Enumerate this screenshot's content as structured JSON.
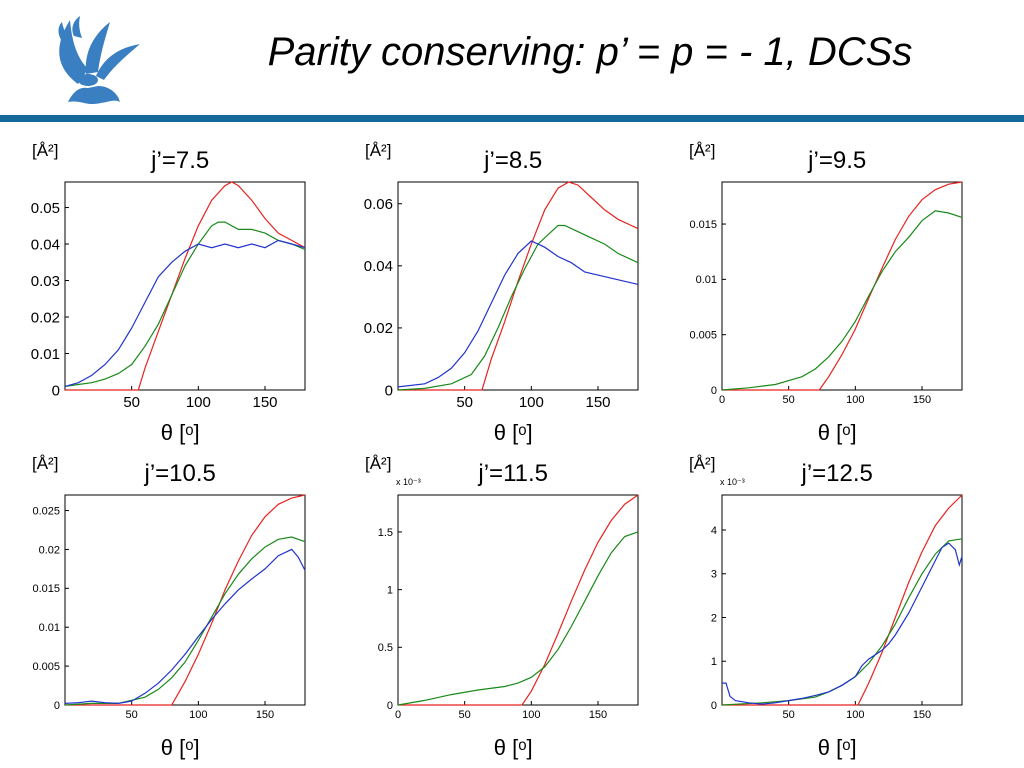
{
  "slide": {
    "title": "Parity conserving: p’ = p = - 1, DCSs"
  },
  "colors": {
    "accent": "#15699b",
    "red": "#e8231f",
    "green": "#1a8a1a",
    "blue": "#2233cc"
  },
  "chart_data": [
    {
      "type": "line",
      "title": "j’=7.5",
      "ylabel": "[Å2]",
      "xlabel": "θ [o]",
      "xlim": [
        0,
        180
      ],
      "ylim": [
        0,
        0.057
      ],
      "xticks": [
        "50",
        "100",
        "150"
      ],
      "xtick_values": [
        50,
        100,
        150
      ],
      "yticks": [
        "0",
        "0.01",
        "0.02",
        "0.03",
        "0.04",
        "0.05"
      ],
      "ytick_values": [
        0,
        0.01,
        0.02,
        0.03,
        0.04,
        0.05
      ],
      "exponent": "",
      "series": [
        {
          "color": "red",
          "x": [
            0,
            55,
            60,
            70,
            80,
            90,
            100,
            110,
            120,
            125,
            130,
            140,
            150,
            160,
            170,
            180
          ],
          "y": [
            0,
            0,
            0.006,
            0.016,
            0.026,
            0.036,
            0.045,
            0.052,
            0.056,
            0.057,
            0.056,
            0.052,
            0.047,
            0.043,
            0.041,
            0.039
          ]
        },
        {
          "color": "green",
          "x": [
            0,
            10,
            20,
            30,
            40,
            50,
            60,
            70,
            80,
            90,
            100,
            110,
            115,
            120,
            130,
            140,
            150,
            160,
            170,
            180
          ],
          "y": [
            0.001,
            0.0015,
            0.002,
            0.003,
            0.0045,
            0.007,
            0.012,
            0.018,
            0.026,
            0.034,
            0.04,
            0.045,
            0.046,
            0.046,
            0.044,
            0.044,
            0.043,
            0.041,
            0.04,
            0.0385
          ]
        },
        {
          "color": "blue",
          "x": [
            0,
            10,
            20,
            30,
            40,
            50,
            60,
            70,
            80,
            90,
            100,
            110,
            120,
            130,
            140,
            150,
            160,
            170,
            180
          ],
          "y": [
            0.001,
            0.002,
            0.004,
            0.007,
            0.011,
            0.017,
            0.024,
            0.031,
            0.035,
            0.038,
            0.04,
            0.039,
            0.04,
            0.039,
            0.04,
            0.039,
            0.041,
            0.04,
            0.039
          ]
        }
      ]
    },
    {
      "type": "line",
      "title": "j’=8.5",
      "ylabel": "[Å2]",
      "xlabel": "θ [o]",
      "xlim": [
        0,
        180
      ],
      "ylim": [
        0,
        0.067
      ],
      "xticks": [
        "50",
        "100",
        "150"
      ],
      "xtick_values": [
        50,
        100,
        150
      ],
      "yticks": [
        "0",
        "0.02",
        "0.04",
        "0.06"
      ],
      "ytick_values": [
        0,
        0.02,
        0.04,
        0.06
      ],
      "exponent": "",
      "series": [
        {
          "color": "red",
          "x": [
            0,
            63,
            70,
            80,
            90,
            100,
            110,
            120,
            128,
            135,
            145,
            155,
            165,
            175,
            180
          ],
          "y": [
            0,
            0,
            0.01,
            0.022,
            0.035,
            0.047,
            0.058,
            0.065,
            0.067,
            0.066,
            0.062,
            0.058,
            0.055,
            0.053,
            0.052
          ]
        },
        {
          "color": "green",
          "x": [
            0,
            20,
            40,
            55,
            65,
            75,
            85,
            95,
            105,
            115,
            120,
            125,
            135,
            145,
            155,
            165,
            175,
            180
          ],
          "y": [
            0,
            0.0005,
            0.002,
            0.005,
            0.011,
            0.02,
            0.03,
            0.039,
            0.047,
            0.051,
            0.053,
            0.053,
            0.051,
            0.049,
            0.047,
            0.044,
            0.042,
            0.041
          ]
        },
        {
          "color": "blue",
          "x": [
            0,
            20,
            30,
            40,
            50,
            60,
            70,
            80,
            90,
            100,
            110,
            120,
            130,
            140,
            150,
            160,
            170,
            180
          ],
          "y": [
            0.001,
            0.002,
            0.004,
            0.007,
            0.012,
            0.019,
            0.028,
            0.037,
            0.044,
            0.048,
            0.046,
            0.043,
            0.041,
            0.038,
            0.037,
            0.036,
            0.035,
            0.034
          ]
        }
      ]
    },
    {
      "type": "line",
      "title": "j’=9.5",
      "ylabel": "[Å2]",
      "xlabel": "θ [o]",
      "xlim": [
        0,
        180
      ],
      "ylim": [
        0,
        0.0188
      ],
      "xticks": [
        "0",
        "50",
        "100",
        "150"
      ],
      "xtick_values": [
        0,
        50,
        100,
        150
      ],
      "yticks": [
        "0",
        "0.005",
        "0.01",
        "0.015"
      ],
      "ytick_values": [
        0,
        0.005,
        0.01,
        0.015
      ],
      "exponent": "",
      "series": [
        {
          "color": "red",
          "x": [
            0,
            73,
            80,
            90,
            100,
            110,
            120,
            130,
            140,
            150,
            160,
            170,
            180
          ],
          "y": [
            0,
            0,
            0.0012,
            0.0032,
            0.0055,
            0.0083,
            0.011,
            0.0136,
            0.0157,
            0.0172,
            0.0181,
            0.0186,
            0.0188
          ]
        },
        {
          "color": "green",
          "x": [
            0,
            20,
            40,
            60,
            70,
            80,
            90,
            100,
            110,
            120,
            130,
            140,
            150,
            160,
            170,
            180
          ],
          "y": [
            0,
            0.0002,
            0.0005,
            0.0012,
            0.0019,
            0.003,
            0.0044,
            0.0062,
            0.0085,
            0.0107,
            0.0125,
            0.0138,
            0.0153,
            0.0162,
            0.016,
            0.0156
          ]
        }
      ]
    },
    {
      "type": "line",
      "title": "j’=10.5",
      "ylabel": "[Å2]",
      "xlabel": "θ [o]",
      "xlim": [
        0,
        180
      ],
      "ylim": [
        0,
        0.027
      ],
      "xticks": [
        "50",
        "100",
        "150"
      ],
      "xtick_values": [
        50,
        100,
        150
      ],
      "yticks": [
        "0",
        "0.005",
        "0.01",
        "0.015",
        "0.02",
        "0.025"
      ],
      "ytick_values": [
        0,
        0.005,
        0.01,
        0.015,
        0.02,
        0.025
      ],
      "exponent": "",
      "series": [
        {
          "color": "red",
          "x": [
            0,
            80,
            90,
            100,
            110,
            120,
            130,
            140,
            150,
            160,
            170,
            180
          ],
          "y": [
            0,
            0,
            0.003,
            0.0065,
            0.0105,
            0.0148,
            0.0185,
            0.0218,
            0.0242,
            0.0258,
            0.0266,
            0.027
          ]
        },
        {
          "color": "green",
          "x": [
            0,
            20,
            40,
            60,
            70,
            80,
            90,
            100,
            110,
            120,
            130,
            140,
            150,
            160,
            170,
            180
          ],
          "y": [
            0,
            0.0002,
            0.0002,
            0.001,
            0.002,
            0.0035,
            0.0055,
            0.0083,
            0.0113,
            0.0143,
            0.0168,
            0.0188,
            0.0203,
            0.0213,
            0.0216,
            0.021
          ]
        },
        {
          "color": "blue",
          "x": [
            0,
            10,
            20,
            30,
            40,
            50,
            60,
            70,
            80,
            90,
            100,
            110,
            120,
            130,
            140,
            150,
            160,
            170,
            175,
            180
          ],
          "y": [
            0.0002,
            0.0003,
            0.0005,
            0.0003,
            0.0002,
            0.0005,
            0.0015,
            0.0028,
            0.0045,
            0.0065,
            0.0088,
            0.011,
            0.013,
            0.0148,
            0.0162,
            0.0175,
            0.0192,
            0.02,
            0.019,
            0.0173
          ]
        }
      ]
    },
    {
      "type": "line",
      "title": "j’=11.5",
      "ylabel": "[Å2]",
      "xlabel": "θ [o]",
      "xlim": [
        0,
        180
      ],
      "ylim": [
        0,
        1.82
      ],
      "xticks": [
        "0",
        "50",
        "100",
        "150"
      ],
      "xtick_values": [
        0,
        50,
        100,
        150
      ],
      "yticks": [
        "0",
        "0.5",
        "1",
        "1.5"
      ],
      "ytick_values": [
        0,
        0.5,
        1,
        1.5
      ],
      "exponent": "x 10-3",
      "series": [
        {
          "color": "red",
          "x": [
            0,
            93,
            100,
            110,
            120,
            130,
            140,
            150,
            160,
            170,
            180
          ],
          "y": [
            0,
            0,
            0.12,
            0.35,
            0.62,
            0.9,
            1.17,
            1.41,
            1.6,
            1.74,
            1.82
          ]
        },
        {
          "color": "green",
          "x": [
            0,
            20,
            40,
            60,
            80,
            90,
            100,
            110,
            120,
            130,
            140,
            150,
            160,
            170,
            180
          ],
          "y": [
            0,
            0.04,
            0.09,
            0.13,
            0.16,
            0.19,
            0.24,
            0.33,
            0.48,
            0.68,
            0.9,
            1.12,
            1.32,
            1.46,
            1.5
          ]
        }
      ]
    },
    {
      "type": "line",
      "title": "j’=12.5",
      "ylabel": "[Å2]",
      "xlabel": "θ [o]",
      "xlim": [
        0,
        180
      ],
      "ylim": [
        0,
        4.8
      ],
      "xticks": [
        "50",
        "100",
        "150"
      ],
      "xtick_values": [
        50,
        100,
        150
      ],
      "yticks": [
        "0",
        "1",
        "2",
        "3",
        "4"
      ],
      "ytick_values": [
        0,
        1,
        2,
        3,
        4
      ],
      "exponent": "x 10-3",
      "series": [
        {
          "color": "red",
          "x": [
            0,
            102,
            110,
            120,
            130,
            140,
            150,
            160,
            170,
            180
          ],
          "y": [
            0,
            0,
            0.5,
            1.2,
            2.0,
            2.8,
            3.5,
            4.1,
            4.5,
            4.8
          ]
        },
        {
          "color": "green",
          "x": [
            0,
            30,
            50,
            70,
            80,
            90,
            100,
            110,
            120,
            130,
            140,
            150,
            160,
            170,
            180
          ],
          "y": [
            0,
            0.05,
            0.1,
            0.18,
            0.3,
            0.45,
            0.65,
            0.95,
            1.35,
            1.85,
            2.45,
            3.0,
            3.45,
            3.75,
            3.8
          ]
        },
        {
          "color": "blue",
          "x": [
            0,
            3,
            6,
            10,
            20,
            30,
            40,
            50,
            60,
            70,
            80,
            90,
            100,
            105,
            110,
            115,
            120,
            125,
            130,
            140,
            150,
            160,
            165,
            170,
            175,
            178,
            180
          ],
          "y": [
            0.5,
            0.5,
            0.2,
            0.1,
            0.05,
            0.02,
            0.05,
            0.1,
            0.15,
            0.22,
            0.3,
            0.45,
            0.65,
            0.9,
            1.05,
            1.15,
            1.25,
            1.4,
            1.6,
            2.1,
            2.7,
            3.3,
            3.6,
            3.7,
            3.55,
            3.2,
            3.4
          ]
        }
      ]
    }
  ]
}
